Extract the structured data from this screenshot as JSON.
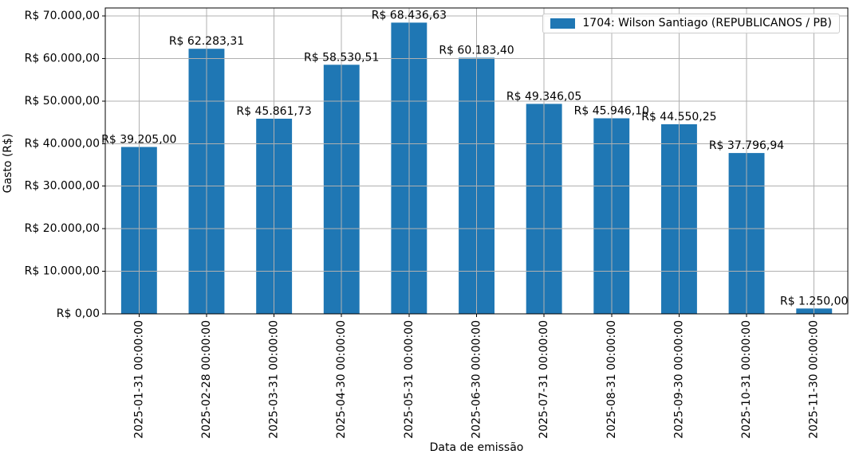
{
  "chart_data": {
    "type": "bar",
    "title": "",
    "xlabel": "Data de emissão",
    "ylabel": "Gasto (R$)",
    "categories": [
      "2025-01-31 00:00:00",
      "2025-02-28 00:00:00",
      "2025-03-31 00:00:00",
      "2025-04-30 00:00:00",
      "2025-05-31 00:00:00",
      "2025-06-30 00:00:00",
      "2025-07-31 00:00:00",
      "2025-08-31 00:00:00",
      "2025-09-30 00:00:00",
      "2025-10-31 00:00:00",
      "2025-11-30 00:00:00"
    ],
    "series": [
      {
        "name": "1704: Wilson Santiago (REPUBLICANOS / PB)",
        "values": [
          39205.0,
          62283.31,
          45861.73,
          58530.51,
          68436.63,
          60183.4,
          49346.05,
          45946.1,
          44550.25,
          37796.94,
          1250.0
        ],
        "bar_labels": [
          "R$ 39.205,00",
          "R$ 62.283,31",
          "R$ 45.861,73",
          "R$ 58.530,51",
          "R$ 68.436,63",
          "R$ 60.183,40",
          "R$ 49.346,05",
          "R$ 45.946,10",
          "R$ 44.550,25",
          "R$ 37.796,94",
          "R$ 1.250,00"
        ]
      }
    ],
    "ylim": [
      0,
      71872
    ],
    "yticks": {
      "values": [
        0,
        10000,
        20000,
        30000,
        40000,
        50000,
        60000,
        70000
      ],
      "labels": [
        "R$ 0,00",
        "R$ 10.000,00",
        "R$ 20.000,00",
        "R$ 30.000,00",
        "R$ 40.000,00",
        "R$ 50.000,00",
        "R$ 60.000,00",
        "R$ 70.000,00"
      ]
    },
    "grid": true,
    "grid_on_top": true,
    "legend_position": "upper right",
    "colors": {
      "bar": "#1f77b4",
      "grid": "#b0b0b0",
      "axis": "#000000",
      "text": "#000000",
      "legend_border": "#cccccc"
    }
  },
  "legend": {
    "label": "1704: Wilson Santiago (REPUBLICANOS / PB)"
  }
}
